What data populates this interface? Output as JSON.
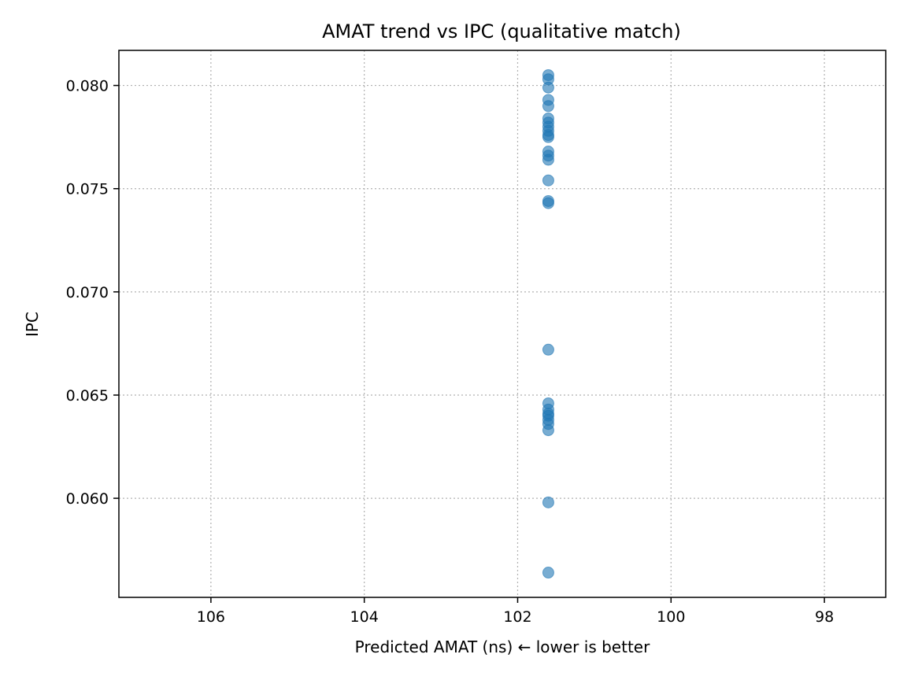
{
  "chart_data": {
    "type": "scatter",
    "title": "AMAT trend vs IPC (qualitative match)",
    "xlabel": "Predicted AMAT (ns)  ← lower is better",
    "ylabel": "IPC",
    "xlim": [
      107.2,
      97.2
    ],
    "ylim": [
      0.0552,
      0.0817
    ],
    "x_inverted": true,
    "grid": true,
    "x_ticks": [
      106,
      104,
      102,
      100,
      98
    ],
    "x_tick_labels": [
      "106",
      "104",
      "102",
      "100",
      "98"
    ],
    "y_ticks": [
      0.06,
      0.065,
      0.07,
      0.075,
      0.08
    ],
    "y_tick_labels": [
      "0.060",
      "0.065",
      "0.070",
      "0.075",
      "0.080"
    ],
    "marker_color": "#1f77b4",
    "marker_alpha": 0.6,
    "points": [
      {
        "x": 101.6,
        "y": 0.0805
      },
      {
        "x": 101.6,
        "y": 0.0803
      },
      {
        "x": 101.6,
        "y": 0.0799
      },
      {
        "x": 101.6,
        "y": 0.0793
      },
      {
        "x": 101.6,
        "y": 0.079
      },
      {
        "x": 101.6,
        "y": 0.0784
      },
      {
        "x": 101.6,
        "y": 0.0782
      },
      {
        "x": 101.6,
        "y": 0.078
      },
      {
        "x": 101.6,
        "y": 0.0778
      },
      {
        "x": 101.6,
        "y": 0.0776
      },
      {
        "x": 101.6,
        "y": 0.0775
      },
      {
        "x": 101.6,
        "y": 0.0768
      },
      {
        "x": 101.6,
        "y": 0.0766
      },
      {
        "x": 101.6,
        "y": 0.0764
      },
      {
        "x": 101.6,
        "y": 0.0754
      },
      {
        "x": 101.6,
        "y": 0.0744
      },
      {
        "x": 101.6,
        "y": 0.0743
      },
      {
        "x": 101.6,
        "y": 0.0672
      },
      {
        "x": 101.6,
        "y": 0.0646
      },
      {
        "x": 101.6,
        "y": 0.0643
      },
      {
        "x": 101.6,
        "y": 0.0641
      },
      {
        "x": 101.6,
        "y": 0.064
      },
      {
        "x": 101.6,
        "y": 0.0638
      },
      {
        "x": 101.6,
        "y": 0.0636
      },
      {
        "x": 101.6,
        "y": 0.0633
      },
      {
        "x": 101.6,
        "y": 0.0598
      },
      {
        "x": 101.6,
        "y": 0.0564
      }
    ]
  }
}
